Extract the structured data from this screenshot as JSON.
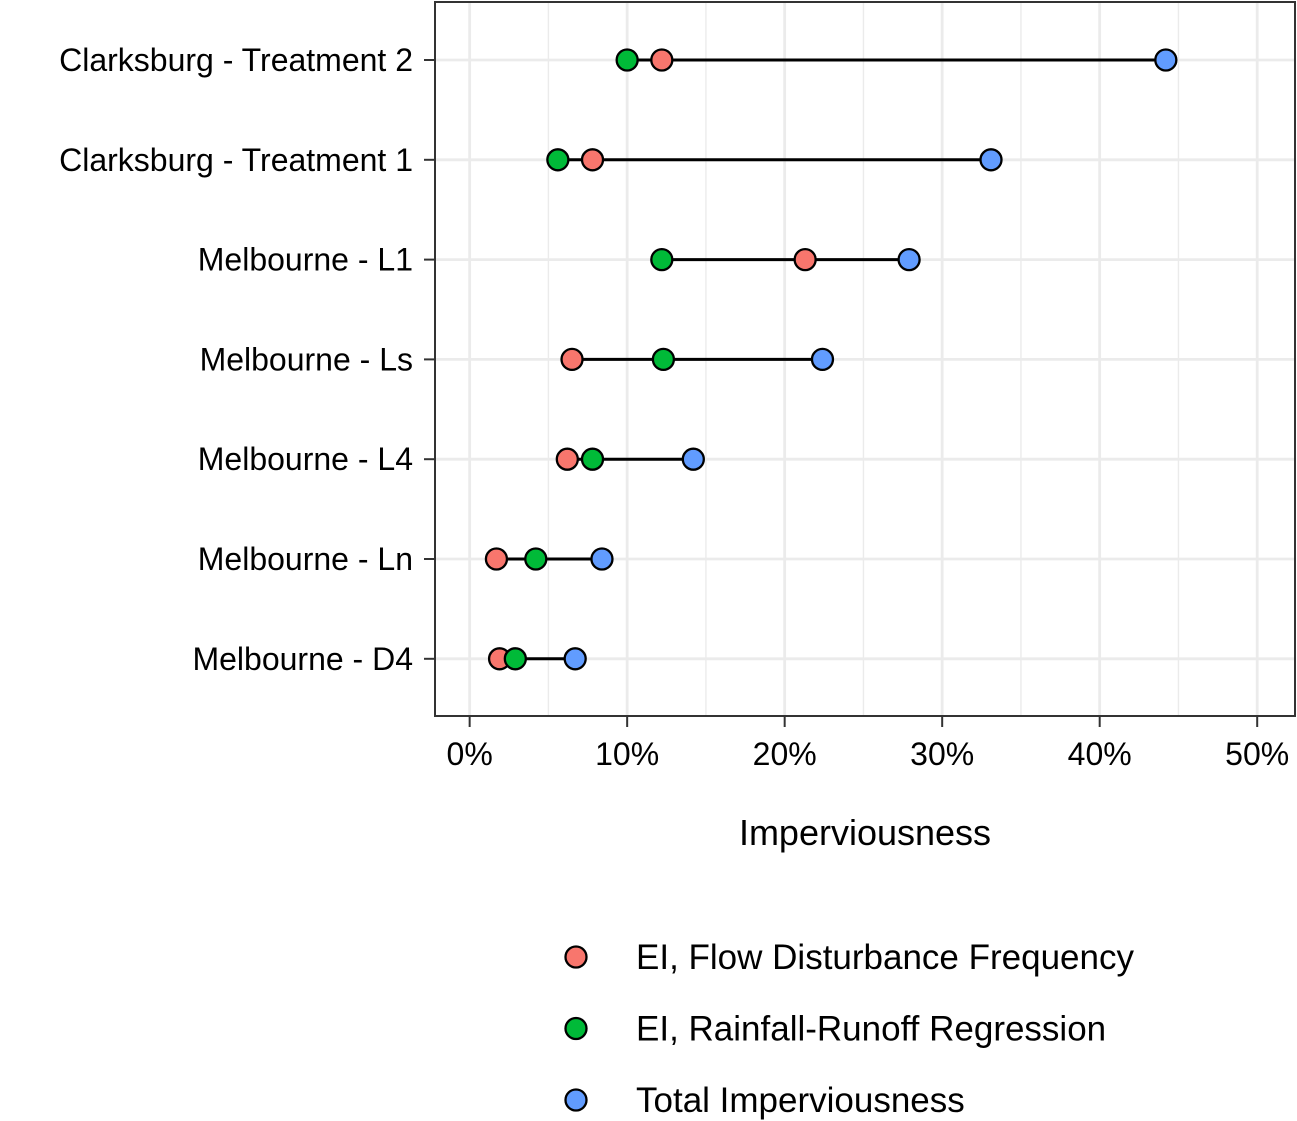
{
  "chart_data": {
    "type": "dumbbell",
    "xlabel": "Imperviousness",
    "ylabel": "",
    "xlim": [
      -2.2,
      52.4
    ],
    "x_ticks": [
      0,
      10,
      20,
      30,
      40,
      50
    ],
    "x_tick_labels": [
      "0%",
      "10%",
      "20%",
      "30%",
      "40%",
      "50%"
    ],
    "grid": true,
    "legend_position": "bottom",
    "categories": [
      "Clarksburg - Treatment 2",
      "Clarksburg - Treatment 1",
      "Melbourne - L1",
      "Melbourne - Ls",
      "Melbourne - L4",
      "Melbourne - Ln",
      "Melbourne - D4"
    ],
    "series": [
      {
        "name": "EI, Flow Disturbance Frequency",
        "color": "#F8766D",
        "values": [
          12.2,
          7.8,
          21.3,
          6.5,
          6.2,
          1.7,
          1.9
        ]
      },
      {
        "name": "EI, Rainfall-Runoff Regression",
        "color": "#00BA38",
        "values": [
          10.0,
          5.6,
          12.2,
          12.3,
          7.8,
          4.2,
          2.9
        ]
      },
      {
        "name": "Total Imperviousness",
        "color": "#619CFF",
        "values": [
          44.2,
          33.1,
          27.9,
          22.4,
          14.2,
          8.4,
          6.7
        ]
      }
    ]
  }
}
